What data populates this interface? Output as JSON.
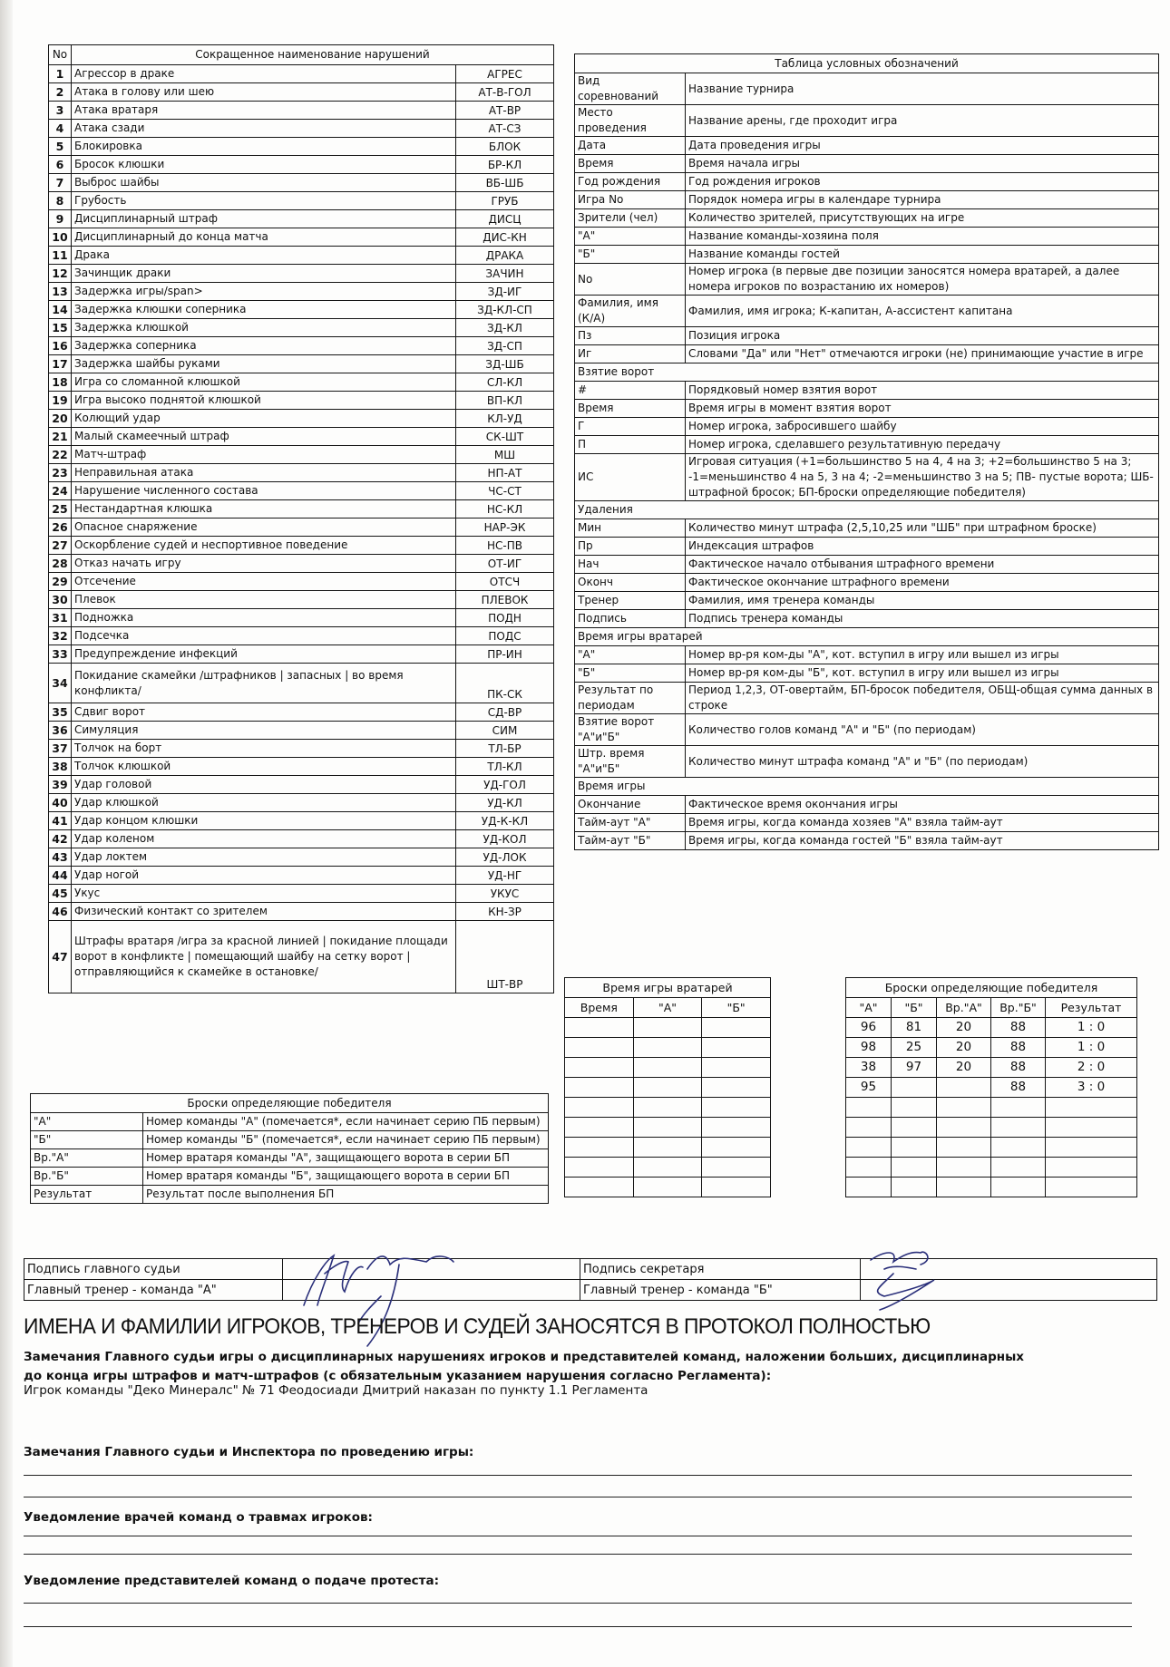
{
  "violations": {
    "header_no": "No",
    "header_title": "Сокращенное наименование нарушений",
    "items": [
      {
        "no": "1",
        "name": "Агрессор в драке",
        "code": "АГРЕС"
      },
      {
        "no": "2",
        "name": "Атака в голову или шею",
        "code": "АТ-В-ГОЛ"
      },
      {
        "no": "3",
        "name": "Атака вратаря",
        "code": "АТ-ВР"
      },
      {
        "no": "4",
        "name": "Атака сзади",
        "code": "АТ-СЗ"
      },
      {
        "no": "5",
        "name": "Блокировка",
        "code": "БЛОК"
      },
      {
        "no": "6",
        "name": "Бросок клюшки",
        "code": "БР-КЛ"
      },
      {
        "no": "7",
        "name": "Выброс шайбы",
        "code": "ВБ-ШБ"
      },
      {
        "no": "8",
        "name": "Грубость",
        "code": "ГРУБ"
      },
      {
        "no": "9",
        "name": "Дисциплинарный штраф",
        "code": "ДИСЦ"
      },
      {
        "no": "10",
        "name": "Дисциплинарный до конца матча",
        "code": "ДИС-КН"
      },
      {
        "no": "11",
        "name": "Драка",
        "code": "ДРАКА"
      },
      {
        "no": "12",
        "name": "Зачинщик драки",
        "code": "ЗАЧИН"
      },
      {
        "no": "13",
        "name": "Задержка игры/span>",
        "code": "ЗД-ИГ"
      },
      {
        "no": "14",
        "name": "Задержка клюшки соперника",
        "code": "ЗД-КЛ-СП"
      },
      {
        "no": "15",
        "name": "Задержка клюшкой",
        "code": "ЗД-КЛ"
      },
      {
        "no": "16",
        "name": "Задержка соперника",
        "code": "ЗД-СП"
      },
      {
        "no": "17",
        "name": "Задержка шайбы руками",
        "code": "ЗД-ШБ"
      },
      {
        "no": "18",
        "name": "Игра со сломанной клюшкой",
        "code": "СЛ-КЛ"
      },
      {
        "no": "19",
        "name": "Игра высоко поднятой клюшкой",
        "code": "ВП-КЛ"
      },
      {
        "no": "20",
        "name": "Колющий удар",
        "code": "КЛ-УД"
      },
      {
        "no": "21",
        "name": "Малый скамеечный штраф",
        "code": "СК-ШТ"
      },
      {
        "no": "22",
        "name": "Матч-штраф",
        "code": "МШ"
      },
      {
        "no": "23",
        "name": "Неправильная атака",
        "code": "НП-АТ"
      },
      {
        "no": "24",
        "name": "Нарушение численного состава",
        "code": "ЧС-СТ"
      },
      {
        "no": "25",
        "name": "Нестандартная клюшка",
        "code": "НС-КЛ"
      },
      {
        "no": "26",
        "name": "Опасное снаряжение",
        "code": "НАР-ЭК"
      },
      {
        "no": "27",
        "name": "Оскорбление судей и неспортивное поведение",
        "code": "НС-ПВ"
      },
      {
        "no": "28",
        "name": "Отказ начать игру",
        "code": "ОТ-ИГ"
      },
      {
        "no": "29",
        "name": "Отсечение",
        "code": "ОТСЧ"
      },
      {
        "no": "30",
        "name": "Плевок",
        "code": "ПЛЕВОК"
      },
      {
        "no": "31",
        "name": "Подножка",
        "code": "ПОДН"
      },
      {
        "no": "32",
        "name": "Подсечка",
        "code": "ПОДС"
      },
      {
        "no": "33",
        "name": "Предупреждение инфекций",
        "code": "ПР-ИН"
      },
      {
        "no": "34",
        "name": "Покидание скамейки /штрафников | запасных | во время конфликта/",
        "code": "ПК-СК"
      },
      {
        "no": "35",
        "name": "Сдвиг ворот",
        "code": "СД-ВР"
      },
      {
        "no": "36",
        "name": "Симуляция",
        "code": "СИМ"
      },
      {
        "no": "37",
        "name": "Толчок на борт",
        "code": "ТЛ-БР"
      },
      {
        "no": "38",
        "name": "Толчок клюшкой",
        "code": "ТЛ-КЛ"
      },
      {
        "no": "39",
        "name": "Удар головой",
        "code": "УД-ГОЛ"
      },
      {
        "no": "40",
        "name": "Удар клюшкой",
        "code": "УД-КЛ"
      },
      {
        "no": "41",
        "name": "Удар концом клюшки",
        "code": "УД-К-КЛ"
      },
      {
        "no": "42",
        "name": "Удар коленом",
        "code": "УД-КОЛ"
      },
      {
        "no": "43",
        "name": "Удар локтем",
        "code": "УД-ЛОК"
      },
      {
        "no": "44",
        "name": "Удар ногой",
        "code": "УД-НГ"
      },
      {
        "no": "45",
        "name": "Укус",
        "code": "УКУС"
      },
      {
        "no": "46",
        "name": "Физический контакт со зрителем",
        "code": "КН-ЗР"
      },
      {
        "no": "47",
        "name": "Штрафы вратаря /игра за красной линией | покидание площади\nворот в конфликте | помещающий шайбу на сетку ворот |отправляющийся к скамейке в остановке/",
        "code": "ШТ-ВР"
      }
    ]
  },
  "legend": {
    "title": "Таблица условных обозначений",
    "rows": [
      {
        "label": "Вид\nсоревнований",
        "desc": "Название турнира"
      },
      {
        "label": "Место\nпроведения",
        "desc": "Название арены, где проходит игра"
      },
      {
        "label": "Дата",
        "desc": "Дата проведения игры"
      },
      {
        "label": "Время",
        "desc": "Время начала игры"
      },
      {
        "label": "Год рождения",
        "desc": "Год рождения игроков"
      },
      {
        "label": "Игра No",
        "desc": "Порядок номера игры в календаре турнира"
      },
      {
        "label": "Зрители (чел)",
        "desc": "Количество зрителей, присутствующих на игре"
      },
      {
        "label": "\"А\"",
        "desc": "Название команды-хозяина поля"
      },
      {
        "label": "\"Б\"",
        "desc": "Название команды гостей"
      },
      {
        "label": "No",
        "desc": "Номер игрока (в первые две позиции заносятся номера вратарей, а далее номера игроков по возрастанию их номеров)"
      },
      {
        "label": "Фамилия, имя\n(К/А)",
        "desc": "Фамилия, имя игрока; К-капитан, А-ассистент капитана"
      },
      {
        "label": "Пз",
        "desc": "Позиция игрока"
      },
      {
        "label": "Иг",
        "desc": "Словами \"Да\" или \"Нет\" отмечаются игроки (не) принимающие участие в игре"
      },
      {
        "section": "Взятие ворот"
      },
      {
        "label": "#",
        "desc": "Порядковый номер взятия ворот"
      },
      {
        "label": "Время",
        "desc": "Время игры в момент взятия ворот"
      },
      {
        "label": "Г",
        "desc": "Номер игрока, забросившего шайбу"
      },
      {
        "label": "П",
        "desc": "Номер игрока, сделавшего результативную передачу"
      },
      {
        "label": "ИС",
        "desc": "Игровая ситуация (+1=большинство 5 на 4, 4 на 3; +2=большинство 5 на 3; -1=меньшинство 4 на 5, 3 на 4; -2=меньшинство 3 на 5; ПВ- пустые ворота; ШБ-штрафной бросок; БП-броски определяющие победителя)"
      },
      {
        "section": "Удаления"
      },
      {
        "label": "Мин",
        "desc": "Количество минут штрафа (2,5,10,25 или \"ШБ\" при штрафном броске)"
      },
      {
        "label": "Пр",
        "desc": "Индексация штрафов"
      },
      {
        "label": "Нач",
        "desc": "Фактическое начало отбывания штрафного времени"
      },
      {
        "label": "Оконч",
        "desc": "Фактическое окончание штрафного времени"
      },
      {
        "label": "Тренер",
        "desc": "Фамилия, имя тренера команды"
      },
      {
        "label": "Подпись",
        "desc": "Подпись тренера команды"
      },
      {
        "section": "Время игры вратарей"
      },
      {
        "label": "\"А\"",
        "desc": "Номер вр-ря ком-ды \"А\", кот. вступил в игру или вышел из игры"
      },
      {
        "label": "\"Б\"",
        "desc": "Номер вр-ря ком-ды \"Б\", кот. вступил в игру или вышел из игры"
      },
      {
        "label": "Результат по\nпериодам",
        "desc": "Период 1,2,3, ОТ-овертайм, БП-бросок победителя, ОБЩ-общая сумма данных в строке"
      },
      {
        "label": "Взятие ворот\n\"А\"и\"Б\"",
        "desc": "Количество голов команд \"А\" и \"Б\" (по периодам)"
      },
      {
        "label": "Штр. время\n\"А\"и\"Б\"",
        "desc": "Количество минут штрафа команд \"А\" и \"Б\" (по периодам)"
      },
      {
        "section": "Время игры"
      },
      {
        "label": "Окончание",
        "desc": "Фактическое время окончания игры"
      },
      {
        "label": "Тайм-аут \"А\"",
        "desc": "Время игры, когда команда хозяев \"А\" взяла тайм-аут"
      },
      {
        "label": "Тайм-аут \"Б\"",
        "desc": "Время игры, когда команда гостей \"Б\" взяла тайм-аут"
      }
    ]
  },
  "goalie_time": {
    "title": "Время игры вратарей",
    "headers": [
      "Время",
      "\"А\"",
      "\"Б\""
    ],
    "rows": [
      [
        "",
        "",
        ""
      ],
      [
        "",
        "",
        ""
      ],
      [
        "",
        "",
        ""
      ],
      [
        "",
        "",
        ""
      ],
      [
        "",
        "",
        ""
      ],
      [
        "",
        "",
        ""
      ],
      [
        "",
        "",
        ""
      ],
      [
        "",
        "",
        ""
      ],
      [
        "",
        "",
        ""
      ]
    ]
  },
  "shootout": {
    "title": "Броски определяющие победителя",
    "headers": [
      "\"А\"",
      "\"Б\"",
      "Вр.\"А\"",
      "Вр.\"Б\"",
      "Результат"
    ],
    "rows": [
      [
        "96",
        "81",
        "20",
        "88",
        "1 : 0"
      ],
      [
        "98",
        "25",
        "20",
        "88",
        "1 : 0"
      ],
      [
        "38",
        "97",
        "20",
        "88",
        "2 : 0"
      ],
      [
        "95",
        "",
        "",
        "88",
        "3 : 0"
      ],
      [
        "",
        "",
        "",
        "",
        ""
      ],
      [
        "",
        "",
        "",
        "",
        ""
      ],
      [
        "",
        "",
        "",
        "",
        ""
      ],
      [
        "",
        "",
        "",
        "",
        ""
      ],
      [
        "",
        "",
        "",
        "",
        ""
      ]
    ]
  },
  "shootout_legend": {
    "title": "Броски определяющие победителя",
    "rows": [
      {
        "label": "\"А\"",
        "desc": "Номер команды \"А\" (помечается*, если начинает серию ПБ первым)"
      },
      {
        "label": "\"Б\"",
        "desc": "Номер команды \"Б\" (помечается*, если начинает серию ПБ первым)"
      },
      {
        "label": "Вр.\"А\"",
        "desc": "Номер вратаря команды \"А\", защищающего ворота в серии БП"
      },
      {
        "label": "Вр.\"Б\"",
        "desc": "Номер вратаря команды \"Б\", защищающего ворота в серии БП"
      },
      {
        "label": "Результат",
        "desc": "Результат после выполнения БП"
      }
    ]
  },
  "signatures": {
    "chief_referee": "Подпись главного судьи",
    "coach_a": "Главный тренер - команда \"А\"",
    "secretary": "Подпись секретаря",
    "coach_b": "Главный тренер - команда \"Б\""
  },
  "notes": {
    "heading": "ИМЕНА И ФАМИЛИИ ИГРОКОВ, ТРЕНЕРОВ И СУДЕЙ ЗАНОСЯТСЯ В ПРОТОКОЛ ПОЛНОСТЬЮ",
    "remarks_label_1": "Замечания Главного судьи игры о дисциплинарных нарушениях игроков и представителей команд, наложении больших, дисциплинарных",
    "remarks_label_2": "до конца игры штрафов и матч-штрафов (с обязательным указанием нарушения согласно Регламента):",
    "remarks_text": "Игрок команды \"Деко Минералс\" № 71 Феодосиади Дмитрий наказан по пункту 1.1 Регламента",
    "inspector_label": "Замечания Главного судьи и Инспектора по проведению игры:",
    "doctors_label": "Уведомление врачей команд о травмах игроков:",
    "protest_label": "Уведомление представителей команд о подаче протеста:"
  }
}
